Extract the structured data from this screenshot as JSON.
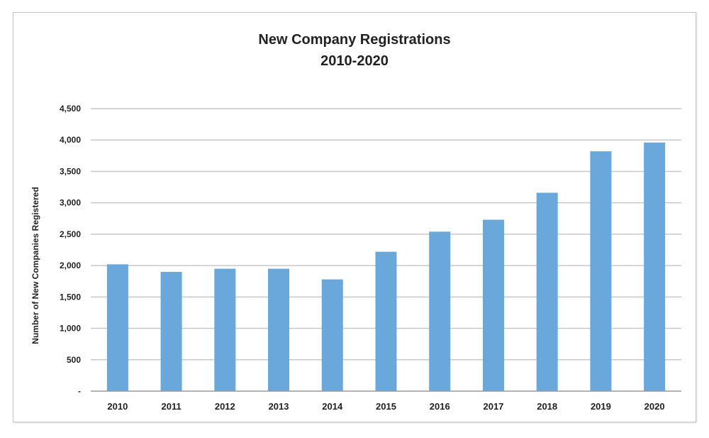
{
  "chart_data": {
    "type": "bar",
    "title": [
      "New Company Registrations",
      "2010-2020"
    ],
    "xlabel": "",
    "ylabel": "Number of New Companies Registered",
    "categories": [
      "2010",
      "2011",
      "2012",
      "2013",
      "2014",
      "2015",
      "2016",
      "2017",
      "2018",
      "2019",
      "2020"
    ],
    "values": [
      2020,
      1900,
      1950,
      1950,
      1780,
      2220,
      2540,
      2730,
      3160,
      3820,
      3960
    ],
    "ylim": [
      0,
      4500
    ],
    "yticks": [
      0,
      500,
      1000,
      1500,
      2000,
      2500,
      3000,
      3500,
      4000,
      4500
    ],
    "ytick_labels": [
      "-",
      "500",
      "1,000",
      "1,500",
      "2,000",
      "2,500",
      "3,000",
      "3,500",
      "4,000",
      "4,500"
    ],
    "grid": true,
    "legend": "none",
    "colors": {
      "bar": "#6aa7db",
      "grid": "#c8c8c8",
      "axis": "#9a9a9a"
    }
  }
}
